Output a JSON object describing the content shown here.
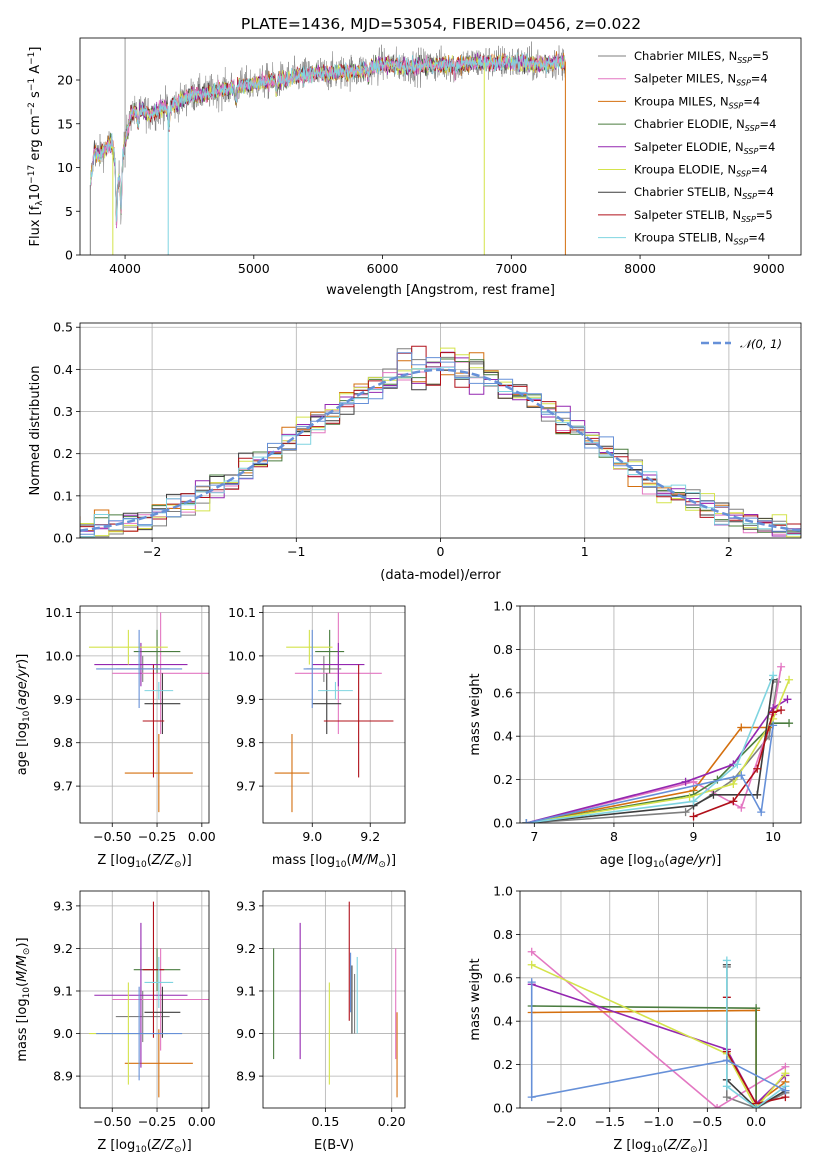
{
  "title": "PLATE=1436, MJD=53054, FIBERID=0456, z=0.022",
  "colors": {
    "c1": "#7f7f7f",
    "c2": "#e377c2",
    "c3": "#d46f0e",
    "c4": "#4a7c3f",
    "c5": "#9427b0",
    "c6": "#d4e34b",
    "c7": "#3d3d3d",
    "c8": "#b0101a",
    "c9": "#7fd4e0",
    "c10": "#6690d8",
    "normal": "#6690d8"
  },
  "chart_data": [
    {
      "id": "spectrum",
      "type": "line",
      "xlabel": "wavelength [Angstrom, rest frame]",
      "ylabel_parts": [
        "Flux [f",
        "λ",
        "10",
        "−17",
        " erg cm",
        "−2",
        " s",
        "−1",
        " A",
        "−1",
        "]"
      ],
      "xlim": [
        3650,
        9250
      ],
      "ylim": [
        0,
        24.8
      ],
      "xticks": [
        4000,
        5000,
        6000,
        7000,
        8000,
        9000
      ],
      "yticks": [
        0,
        5,
        10,
        15,
        20
      ],
      "grid": false,
      "legend": "top-right",
      "x": [
        3730,
        3760,
        3800,
        3850,
        3900,
        3950,
        4000,
        4050,
        4100,
        4150,
        4200,
        4300,
        4400,
        4500,
        4600,
        4800,
        5000,
        5200,
        5400,
        5600,
        5800,
        6000,
        6200,
        6400,
        6600,
        6800,
        7000,
        7200,
        7400
      ],
      "y": [
        8.0,
        11.8,
        11.5,
        12.2,
        12.8,
        8.6,
        13.0,
        16.3,
        16.3,
        16.5,
        16.0,
        16.9,
        17.3,
        18.2,
        18.4,
        19.0,
        19.6,
        20.0,
        20.6,
        20.8,
        21.0,
        21.8,
        21.5,
        21.7,
        21.8,
        22.0,
        22.0,
        21.8,
        22.1
      ],
      "series": [
        {
          "name": "Chabrier MILES",
          "nssp": "5"
        },
        {
          "name": "Salpeter MILES",
          "nssp": "4"
        },
        {
          "name": "Kroupa MILES",
          "nssp": "4"
        },
        {
          "name": "Chabrier ELODIE",
          "nssp": "4"
        },
        {
          "name": "Salpeter ELODIE",
          "nssp": "4"
        },
        {
          "name": "Kroupa ELODIE",
          "nssp": "4"
        },
        {
          "name": "Chabrier STELIB",
          "nssp": "4"
        },
        {
          "name": "Salpeter STELIB",
          "nssp": "5"
        },
        {
          "name": "Kroupa STELIB",
          "nssp": "4"
        }
      ],
      "nssp_label": "N",
      "nssp_sub": "SSP"
    },
    {
      "id": "residuals",
      "type": "histogram",
      "xlabel": "(data-model)/error",
      "ylabel": "Normed distribution",
      "xlim": [
        -2.5,
        2.5
      ],
      "ylim": [
        0,
        0.51
      ],
      "xticks": [
        -2,
        -1,
        0,
        1,
        2
      ],
      "yticks": [
        0.0,
        0.1,
        0.2,
        0.3,
        0.4,
        0.5
      ],
      "grid": true,
      "legend": "top-right",
      "normal_label": "𝒩(0, 1)",
      "bin_width": 0.1
    },
    {
      "id": "age_vs_Z",
      "type": "errorbar",
      "xlabel_parts": [
        "Z [log",
        "10",
        "(",
        "Z/Z",
        "⊙",
        ")]"
      ],
      "ylabel_parts": [
        "age  [log",
        "10",
        "(",
        "age/yr",
        ")]"
      ],
      "xlim": [
        -0.68,
        0.04
      ],
      "ylim": [
        9.615,
        10.115
      ],
      "xticks": [
        -0.5,
        -0.25,
        0.0
      ],
      "yticks": [
        9.7,
        9.8,
        9.9,
        10.0,
        10.1
      ],
      "grid": true,
      "points": [
        {
          "c": "c1",
          "x": -0.33,
          "y": 9.97,
          "xe": 0.15,
          "ye": 0.03
        },
        {
          "c": "c2",
          "x": -0.23,
          "y": 9.96,
          "xe": 0.27,
          "ye": 0.14
        },
        {
          "c": "c3",
          "x": -0.24,
          "y": 9.73,
          "xe": 0.19,
          "ye": 0.09
        },
        {
          "c": "c4",
          "x": -0.25,
          "y": 10.01,
          "xe": 0.13,
          "ye": 0.05
        },
        {
          "c": "c5",
          "x": -0.34,
          "y": 9.98,
          "xe": 0.26,
          "ye": 0.05
        },
        {
          "c": "c6",
          "x": -0.41,
          "y": 10.02,
          "xe": 0.22,
          "ye": 0.04
        },
        {
          "c": "c7",
          "x": -0.22,
          "y": 9.89,
          "xe": 0.1,
          "ye": 0.07
        },
        {
          "c": "c8",
          "x": -0.27,
          "y": 9.85,
          "xe": 0.06,
          "ye": 0.13
        },
        {
          "c": "c9",
          "x": -0.24,
          "y": 9.92,
          "xe": 0.08,
          "ye": 0.02
        },
        {
          "c": "c10",
          "x": -0.35,
          "y": 9.97,
          "xe": 0.24,
          "ye": 0.09
        }
      ]
    },
    {
      "id": "age_vs_mass",
      "type": "errorbar",
      "xlabel_parts": [
        "mass [log",
        "10",
        "(",
        "M/M",
        "⊙",
        ")]"
      ],
      "ylabel": "",
      "xlim": [
        8.83,
        9.32
      ],
      "ylim": [
        9.615,
        10.115
      ],
      "xticks": [
        9.0,
        9.2
      ],
      "yticks": [
        9.7,
        9.8,
        9.9,
        10.0,
        10.1
      ],
      "grid": true,
      "points": [
        {
          "c": "c1",
          "x": 9.04,
          "y": 9.97,
          "xe": 0.06,
          "ye": 0.03
        },
        {
          "c": "c2",
          "x": 9.09,
          "y": 9.96,
          "xe": 0.15,
          "ye": 0.14
        },
        {
          "c": "c3",
          "x": 8.93,
          "y": 9.73,
          "xe": 0.06,
          "ye": 0.09
        },
        {
          "c": "c4",
          "x": 9.06,
          "y": 10.01,
          "xe": 0.05,
          "ye": 0.05
        },
        {
          "c": "c5",
          "x": 9.09,
          "y": 9.98,
          "xe": 0.09,
          "ye": 0.05
        },
        {
          "c": "c6",
          "x": 8.99,
          "y": 10.02,
          "xe": 0.08,
          "ye": 0.04
        },
        {
          "c": "c7",
          "x": 9.05,
          "y": 9.89,
          "xe": 0.05,
          "ye": 0.07
        },
        {
          "c": "c8",
          "x": 9.16,
          "y": 9.85,
          "xe": 0.12,
          "ye": 0.13
        },
        {
          "c": "c9",
          "x": 9.08,
          "y": 9.92,
          "xe": 0.06,
          "ye": 0.02
        },
        {
          "c": "c10",
          "x": 9.0,
          "y": 9.97,
          "xe": 0.03,
          "ye": 0.09
        }
      ]
    },
    {
      "id": "weight_vs_age",
      "type": "line",
      "xlabel_parts": [
        "age  [log",
        "10",
        "(",
        "age/yr",
        ")]"
      ],
      "ylabel": "mass weight",
      "xlim": [
        6.82,
        10.35
      ],
      "ylim": [
        0,
        1.0
      ],
      "xticks": [
        7,
        8,
        9,
        10
      ],
      "yticks": [
        0.0,
        0.2,
        0.4,
        0.6,
        0.8,
        1.0
      ],
      "grid": true,
      "series": [
        {
          "c": "c1",
          "x": [
            6.9,
            8.9,
            9.5,
            9.95,
            10.05
          ],
          "y": [
            0.0,
            0.05,
            0.2,
            0.4,
            0.65
          ]
        },
        {
          "c": "c2",
          "x": [
            6.9,
            9.0,
            9.6,
            10.0,
            10.1
          ],
          "y": [
            0.0,
            0.19,
            0.07,
            0.5,
            0.72
          ]
        },
        {
          "c": "c3",
          "x": [
            6.9,
            9.0,
            9.6,
            9.95
          ],
          "y": [
            0.0,
            0.15,
            0.44,
            0.44
          ]
        },
        {
          "c": "c4",
          "x": [
            6.9,
            9.0,
            9.3,
            10.0,
            10.2
          ],
          "y": [
            0.0,
            0.13,
            0.2,
            0.46,
            0.46
          ]
        },
        {
          "c": "c5",
          "x": [
            6.9,
            8.9,
            9.5,
            10.0,
            10.18
          ],
          "y": [
            0.0,
            0.19,
            0.27,
            0.53,
            0.57
          ]
        },
        {
          "c": "c6",
          "x": [
            6.9,
            8.95,
            9.5,
            10.0,
            10.2
          ],
          "y": [
            0.0,
            0.12,
            0.18,
            0.48,
            0.66
          ]
        },
        {
          "c": "c7",
          "x": [
            6.9,
            9.0,
            9.25,
            9.8,
            10.0
          ],
          "y": [
            0.0,
            0.08,
            0.13,
            0.13,
            0.66
          ]
        },
        {
          "c": "c8",
          "x": [
            9.0,
            9.5,
            9.8,
            10.0,
            10.1
          ],
          "y": [
            0.03,
            0.1,
            0.25,
            0.51,
            0.52
          ]
        },
        {
          "c": "c9",
          "x": [
            6.9,
            9.0,
            9.55,
            10.0
          ],
          "y": [
            0.0,
            0.1,
            0.27,
            0.68
          ]
        },
        {
          "c": "c10",
          "x": [
            6.9,
            9.6,
            9.85,
            10.0
          ],
          "y": [
            0.0,
            0.22,
            0.05,
            0.45
          ]
        }
      ]
    },
    {
      "id": "mass_vs_Z",
      "type": "errorbar",
      "xlabel_parts": [
        "Z [log",
        "10",
        "(",
        "Z/Z",
        "⊙",
        ")]"
      ],
      "ylabel_parts": [
        "mass [log",
        "10",
        "(",
        "M/M",
        "⊙",
        ")]"
      ],
      "xlim": [
        -0.68,
        0.04
      ],
      "ylim": [
        8.825,
        9.335
      ],
      "xticks": [
        -0.5,
        -0.25,
        0.0
      ],
      "yticks": [
        8.9,
        9.0,
        9.1,
        9.2,
        9.3
      ],
      "grid": true,
      "points": [
        {
          "c": "c1",
          "x": -0.33,
          "y": 9.04,
          "xe": 0.15,
          "ye": 0.06
        },
        {
          "c": "c2",
          "x": -0.23,
          "y": 9.08,
          "xe": 0.27,
          "ye": 0.12
        },
        {
          "c": "c3",
          "x": -0.24,
          "y": 8.93,
          "xe": 0.19,
          "ye": 0.08
        },
        {
          "c": "c4",
          "x": -0.25,
          "y": 9.15,
          "xe": 0.13,
          "ye": 0.05
        },
        {
          "c": "c5",
          "x": -0.34,
          "y": 9.09,
          "xe": 0.26,
          "ye": 0.17
        },
        {
          "c": "c6",
          "x": -0.41,
          "y": 9.0,
          "xe": 0.22,
          "ye": 0.12
        },
        {
          "c": "c7",
          "x": -0.22,
          "y": 9.05,
          "xe": 0.1,
          "ye": 0.06
        },
        {
          "c": "c8",
          "x": -0.27,
          "y": 9.15,
          "xe": 0.06,
          "ye": 0.16
        },
        {
          "c": "c9",
          "x": -0.24,
          "y": 9.12,
          "xe": 0.08,
          "ye": 0.06
        },
        {
          "c": "c10",
          "x": -0.35,
          "y": 9.0,
          "xe": 0.24,
          "ye": 0.11
        }
      ]
    },
    {
      "id": "mass_vs_ebv",
      "type": "errorbar",
      "xlabel": "E(B-V)",
      "ylabel": "",
      "xlim": [
        0.103,
        0.21
      ],
      "ylim": [
        8.825,
        9.335
      ],
      "xticks": [
        0.15,
        0.2
      ],
      "yticks": [
        8.9,
        9.0,
        9.1,
        9.2,
        9.3
      ],
      "grid": true,
      "points": [
        {
          "c": "c1",
          "x": 0.172,
          "y": 9.07,
          "xe": 0,
          "ye": 0.07
        },
        {
          "c": "c2",
          "x": 0.203,
          "y": 9.07,
          "xe": 0,
          "ye": 0.13
        },
        {
          "c": "c3",
          "x": 0.204,
          "y": 8.95,
          "xe": 0,
          "ye": 0.1
        },
        {
          "c": "c4",
          "x": 0.111,
          "y": 9.07,
          "xe": 0,
          "ye": 0.13
        },
        {
          "c": "c5",
          "x": 0.131,
          "y": 9.1,
          "xe": 0,
          "ye": 0.16
        },
        {
          "c": "c6",
          "x": 0.153,
          "y": 9.0,
          "xe": 0,
          "ye": 0.12
        },
        {
          "c": "c7",
          "x": 0.17,
          "y": 9.08,
          "xe": 0,
          "ye": 0.08
        },
        {
          "c": "c8",
          "x": 0.168,
          "y": 9.17,
          "xe": 0,
          "ye": 0.14
        },
        {
          "c": "c9",
          "x": 0.174,
          "y": 9.09,
          "xe": 0,
          "ye": 0.09
        },
        {
          "c": "c10",
          "x": 0.169,
          "y": 9.12,
          "xe": 0,
          "ye": 0.07
        }
      ]
    },
    {
      "id": "weight_vs_Z",
      "type": "line",
      "xlabel_parts": [
        "Z [log",
        "10",
        "(",
        "Z/Z",
        "⊙",
        ")]"
      ],
      "ylabel": "mass weight",
      "xlim": [
        -2.42,
        0.46
      ],
      "ylim": [
        0,
        1.0
      ],
      "xticks": [
        -2.0,
        -1.5,
        -1.0,
        -0.5,
        0.0
      ],
      "yticks": [
        0.0,
        0.2,
        0.4,
        0.6,
        0.8,
        1.0
      ],
      "grid": true,
      "series": [
        {
          "c": "c1",
          "x": [
            -0.3,
            -0.3,
            0.0,
            0.3
          ],
          "y": [
            0.65,
            0.05,
            0.0,
            0.07
          ]
        },
        {
          "c": "c2",
          "x": [
            -2.3,
            -0.4,
            0.3
          ],
          "y": [
            0.72,
            0.0,
            0.19
          ]
        },
        {
          "c": "c3",
          "x": [
            -2.3,
            0.0,
            0.0,
            0.3
          ],
          "y": [
            0.44,
            0.45,
            0.02,
            0.12
          ]
        },
        {
          "c": "c4",
          "x": [
            -2.3,
            0.0,
            0.0
          ],
          "y": [
            0.47,
            0.46,
            0.0
          ]
        },
        {
          "c": "c5",
          "x": [
            -2.3,
            -0.3,
            0.0,
            0.3
          ],
          "y": [
            0.57,
            0.27,
            0.02,
            0.15
          ]
        },
        {
          "c": "c6",
          "x": [
            -2.3,
            -0.3,
            0.0,
            0.3
          ],
          "y": [
            0.66,
            0.25,
            0.0,
            0.16
          ]
        },
        {
          "c": "c7",
          "x": [
            -0.3,
            -0.3,
            0.0,
            0.3
          ],
          "y": [
            0.66,
            0.13,
            0.0,
            0.08
          ]
        },
        {
          "c": "c8",
          "x": [
            -0.3,
            -0.3,
            0.0,
            0.3
          ],
          "y": [
            0.51,
            0.26,
            0.02,
            0.05
          ]
        },
        {
          "c": "c9",
          "x": [
            -0.3,
            -0.3,
            0.0,
            0.3
          ],
          "y": [
            0.68,
            0.1,
            0.0,
            0.1
          ]
        },
        {
          "c": "c10",
          "x": [
            -2.3,
            -2.3,
            -0.3,
            0.3
          ],
          "y": [
            0.58,
            0.05,
            0.22,
            0.08
          ]
        }
      ]
    }
  ]
}
